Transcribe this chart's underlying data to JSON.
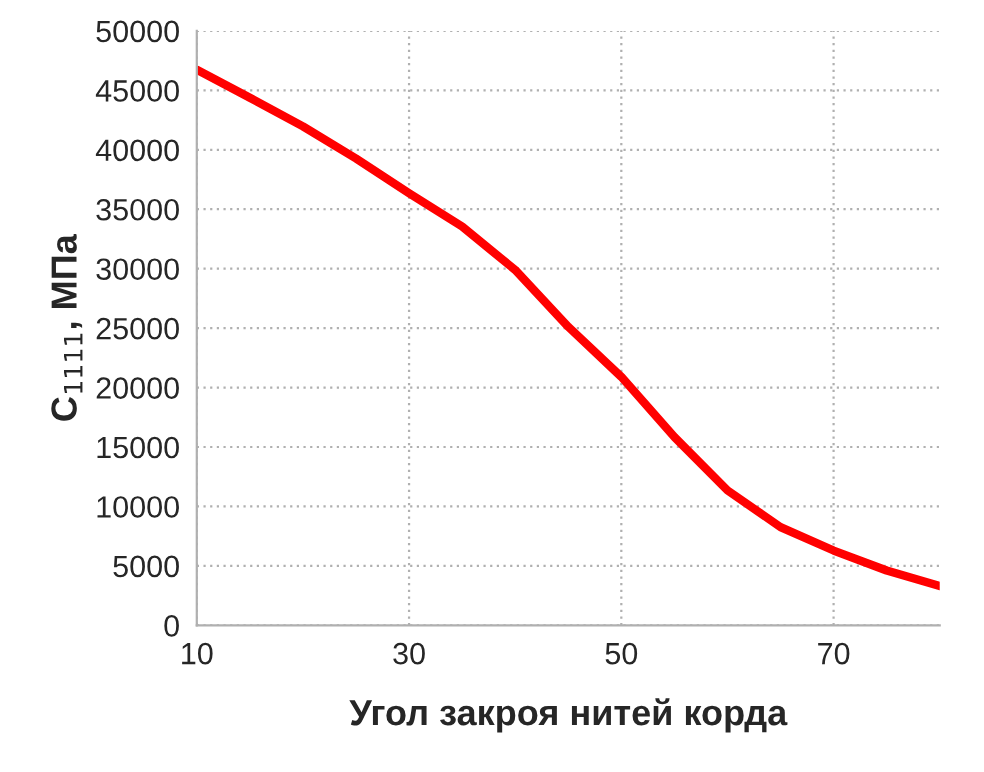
{
  "chart_data": {
    "type": "line",
    "xlabel": "Угол закроя нитей корда",
    "ylabel": "C$_{1111}$, МПа",
    "x": [
      10,
      15,
      20,
      25,
      30,
      35,
      40,
      45,
      50,
      55,
      60,
      65,
      70,
      75,
      80
    ],
    "series": [
      {
        "color": "#ff0000",
        "values": [
          46740,
          44380,
          41970,
          39270,
          36350,
          33540,
          29890,
          25110,
          20900,
          15840,
          11350,
          8260,
          6290,
          4610,
          3310
        ]
      }
    ],
    "xlim": [
      10,
      80
    ],
    "xticks": [
      10,
      30,
      50,
      70
    ],
    "ylim": [
      0,
      50000
    ],
    "yticks": [
      0,
      5000,
      10000,
      15000,
      20000,
      25000,
      30000,
      35000,
      40000,
      45000,
      50000
    ],
    "grid": true,
    "marker": "none",
    "line_style": "solid"
  }
}
